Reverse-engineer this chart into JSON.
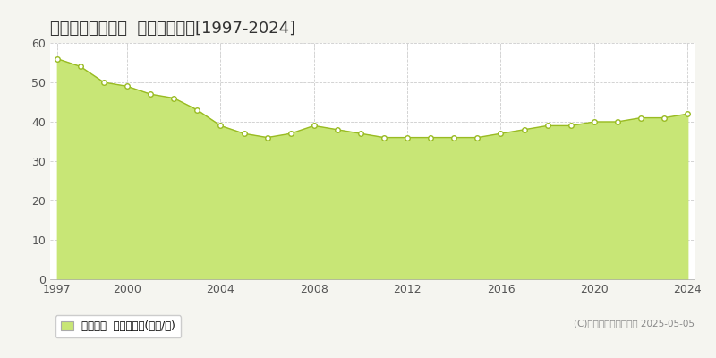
{
  "title": "生駒郡斑鳩町阿波  基準地価推移[1997-2024]",
  "years": [
    1997,
    1998,
    1999,
    2000,
    2001,
    2002,
    2003,
    2004,
    2005,
    2006,
    2007,
    2008,
    2009,
    2010,
    2011,
    2012,
    2013,
    2014,
    2015,
    2016,
    2017,
    2018,
    2019,
    2020,
    2021,
    2022,
    2023,
    2024
  ],
  "values": [
    56,
    54,
    50,
    49,
    47,
    46,
    43,
    39,
    37,
    36,
    37,
    39,
    38,
    37,
    36,
    36,
    36,
    36,
    36,
    37,
    38,
    39,
    39,
    40,
    40,
    41,
    41,
    42
  ],
  "fill_color": "#c8e676",
  "line_color": "#99bb22",
  "marker_color": "#ffffff",
  "marker_edge_color": "#99bb22",
  "bg_color": "#f5f5f0",
  "plot_bg_color": "#ffffff",
  "grid_color": "#cccccc",
  "title_fontsize": 13,
  "ylim": [
    0,
    60
  ],
  "yticks": [
    0,
    10,
    20,
    30,
    40,
    50,
    60
  ],
  "xticks": [
    1997,
    2000,
    2004,
    2008,
    2012,
    2016,
    2020,
    2024
  ],
  "legend_label": "基準地価  平均坤単価(万円/坤)",
  "copyright": "(C)土地価格ドットコム 2025-05-05"
}
